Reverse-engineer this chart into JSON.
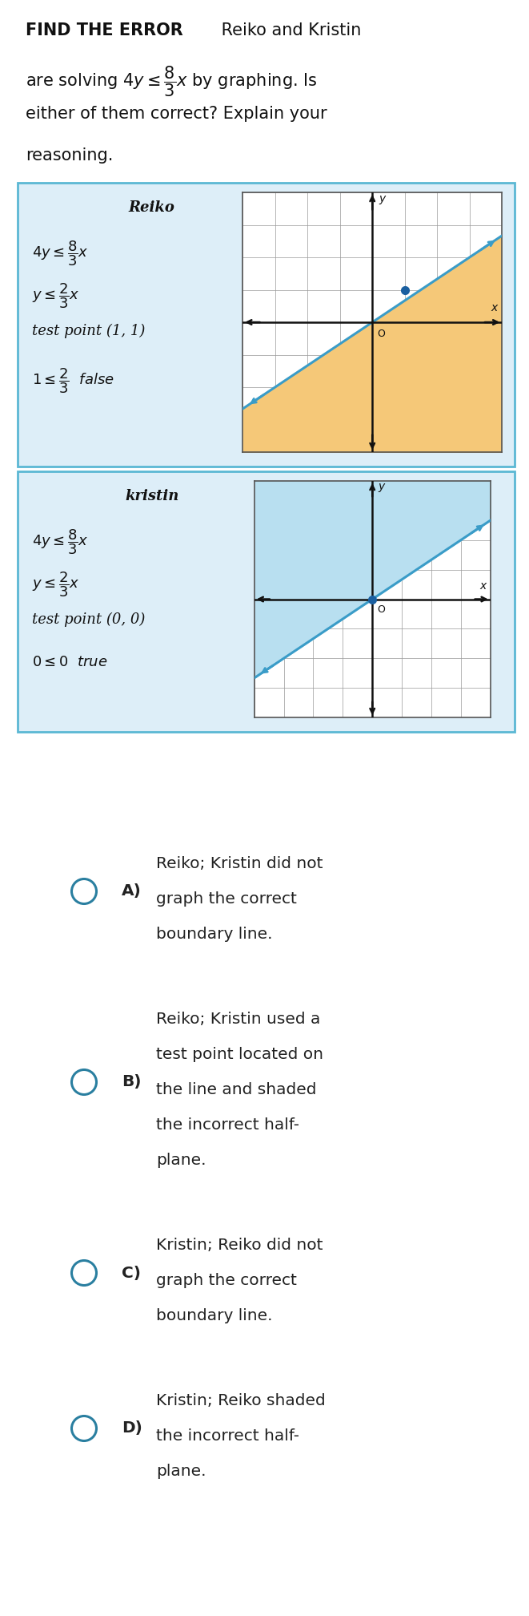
{
  "bg_color": "#ffffff",
  "box_bg": "#ddeef8",
  "box_border": "#5bb8d4",
  "reiko_shade_color": "#f5c878",
  "kristin_shade_color": "#b8dff0",
  "line_color": "#3a9cc8",
  "axis_color": "#111111",
  "grid_color": "#999999",
  "dot_color": "#1a5fa0",
  "answer_circle_color": "#2a7fa0",
  "graph_border_color": "#555555",
  "answers": [
    {
      "letter": "A)",
      "lines": [
        "Reiko; Kristin did not",
        "graph the correct",
        "boundary line."
      ]
    },
    {
      "letter": "B)",
      "lines": [
        "Reiko; Kristin used a",
        "test point located on",
        "the line and shaded",
        "the incorrect half-",
        "plane."
      ]
    },
    {
      "letter": "C)",
      "lines": [
        "Kristin; Reiko did not",
        "graph the correct",
        "boundary line."
      ]
    },
    {
      "letter": "D)",
      "lines": [
        "Kristin; Reiko shaded",
        "the incorrect half-",
        "plane."
      ]
    }
  ]
}
